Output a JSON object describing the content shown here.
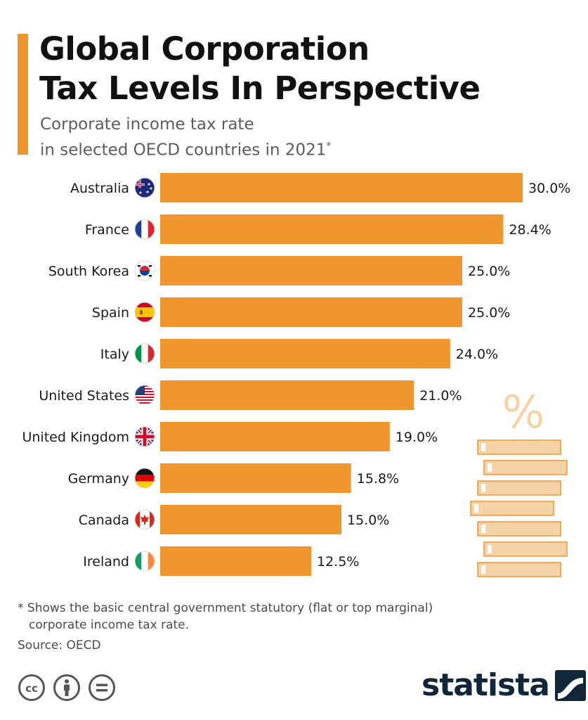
{
  "header": {
    "title_line1": "Global Corporation",
    "title_line2": "Tax Levels In Perspective",
    "subtitle_line1": "Corporate income tax rate",
    "subtitle_line2": "in selected OECD countries in 2021",
    "subtitle_mark": "*"
  },
  "colors": {
    "accent": "#f0962f",
    "bar": "#f0962f",
    "decoration": "#f6d2a7",
    "brand": "#12263a"
  },
  "chart_data": {
    "type": "bar",
    "orientation": "horizontal",
    "categories": [
      "Australia",
      "France",
      "South Korea",
      "Spain",
      "Italy",
      "United States",
      "United Kingdom",
      "Germany",
      "Canada",
      "Ireland"
    ],
    "values": [
      30.0,
      28.4,
      25.0,
      25.0,
      24.0,
      21.0,
      19.0,
      15.8,
      15.0,
      12.5
    ],
    "value_labels": [
      "30.0%",
      "28.4%",
      "25.0%",
      "25.0%",
      "24.0%",
      "21.0%",
      "19.0%",
      "15.8%",
      "15.0%",
      "12.5%"
    ],
    "flags": [
      "flag-australia",
      "flag-france",
      "flag-south-korea",
      "flag-spain",
      "flag-italy",
      "flag-united-states",
      "flag-united-kingdom",
      "flag-germany",
      "flag-canada",
      "flag-ireland"
    ],
    "xlim": [
      0,
      30
    ],
    "grid": false,
    "legend": "none"
  },
  "decoration": {
    "symbol": "%"
  },
  "footer": {
    "footnote_line1": "* Shows the basic central government statutory (flat or top marginal)",
    "footnote_line2": "corporate income tax rate.",
    "source": "Source: OECD",
    "license_icons": [
      "cc-icon",
      "attribution-icon",
      "no-derivatives-icon"
    ],
    "brand": "statista"
  }
}
